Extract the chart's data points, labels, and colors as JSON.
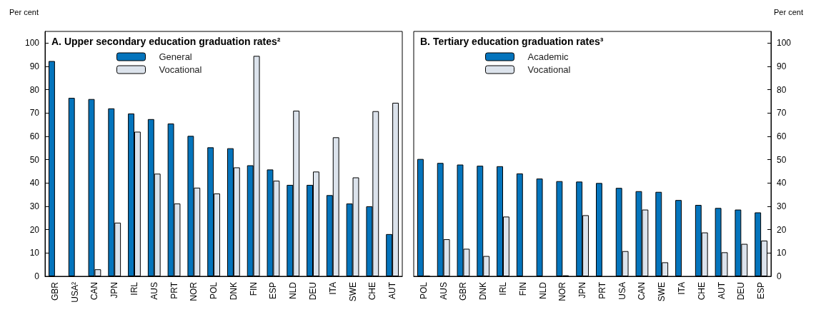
{
  "chart_data": [
    {
      "type": "bar",
      "title": "A. Upper secondary education graduation rates²",
      "ylabel": "Per cent",
      "categories": [
        "GBR",
        "USA²",
        "CAN",
        "JPN",
        "IRL",
        "AUS",
        "PRT",
        "NOR",
        "POL",
        "DNK",
        "FIN",
        "ESP",
        "NLD",
        "DEU",
        "ITA",
        "SWE",
        "CHE",
        "AUT"
      ],
      "series": [
        {
          "name": "General",
          "color": "#0474bc",
          "values": [
            92.3,
            76.5,
            76,
            72,
            69.8,
            67.4,
            65.5,
            60.2,
            55.3,
            54.9,
            47.6,
            45.8,
            39.2,
            39.2,
            34.8,
            31.2,
            30,
            18.1
          ]
        },
        {
          "name": "Vocational",
          "color": "#dce3ec",
          "values": [
            null,
            null,
            3,
            23,
            62,
            44,
            31.2,
            38,
            35.5,
            46.7,
            94.5,
            41,
            71,
            44.9,
            59.6,
            42.4,
            70.8,
            74.4
          ]
        }
      ],
      "ylim": [
        0,
        105
      ],
      "yticks": [
        0,
        10,
        20,
        30,
        40,
        50,
        60,
        70,
        80,
        90,
        100
      ],
      "grid": false,
      "legend": "top left"
    },
    {
      "type": "bar",
      "title": "B. Tertiary education graduation rates³",
      "ylabel": "Per cent",
      "categories": [
        "POL",
        "AUS",
        "GBR",
        "DNK",
        "IRL",
        "FIN",
        "NLD",
        "NOR",
        "JPN",
        "PRT",
        "USA",
        "CAN",
        "SWE",
        "ITA",
        "CHE",
        "AUT",
        "DEU",
        "ESP"
      ],
      "series": [
        {
          "name": "Academic",
          "color": "#0474bc",
          "values": [
            50.3,
            48.6,
            47.9,
            47.4,
            47.2,
            44.1,
            41.9,
            40.8,
            40.6,
            40,
            37.9,
            36.5,
            36.2,
            32.7,
            30.6,
            29.3,
            28.6,
            27.4
          ]
        },
        {
          "name": "Vocational",
          "color": "#dce3ec",
          "values": [
            0.2,
            15.9,
            11.8,
            8.7,
            25.6,
            null,
            null,
            0.4,
            26.2,
            null,
            10.8,
            28.6,
            6,
            null,
            18.8,
            10.3,
            13.9,
            15.3
          ]
        }
      ],
      "ylim": [
        0,
        105
      ],
      "yticks": [
        0,
        10,
        20,
        30,
        40,
        50,
        60,
        70,
        80,
        90,
        100
      ],
      "grid": false,
      "legend": "top left"
    }
  ]
}
